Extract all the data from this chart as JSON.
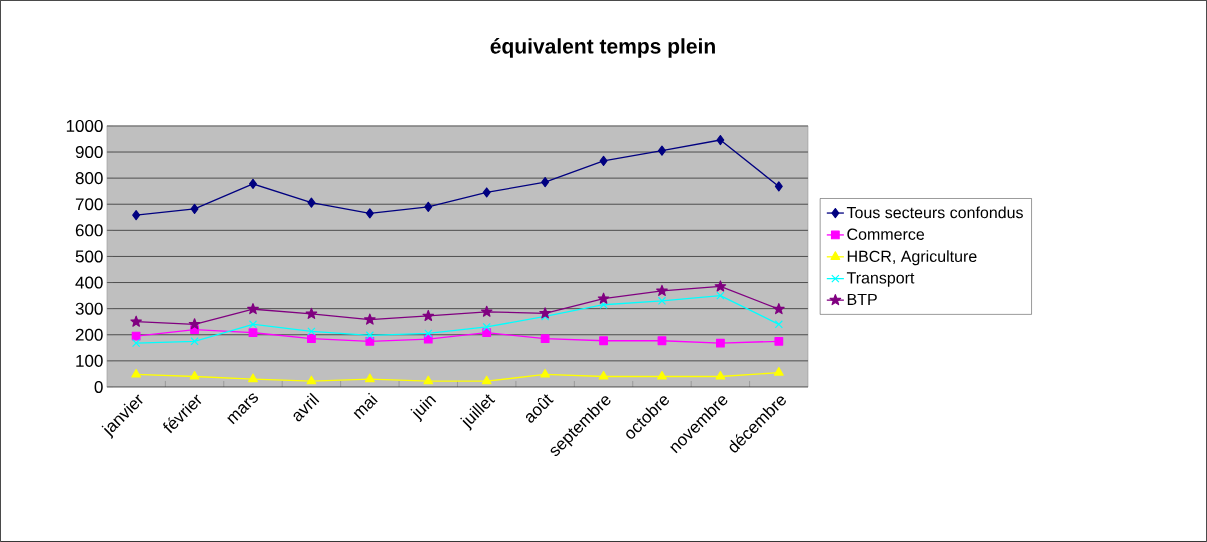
{
  "chart_data": {
    "type": "line",
    "title": "équivalent temps plein",
    "categories": [
      "janvier",
      "février",
      "mars",
      "avril",
      "mai",
      "juin",
      "juillet",
      "août",
      "septembre",
      "octobre",
      "novembre",
      "décembre"
    ],
    "series": [
      {
        "name": "Tous secteurs confondus",
        "color": "#000080",
        "marker": "diamond",
        "values": [
          658,
          682,
          778,
          706,
          665,
          690,
          745,
          785,
          866,
          905,
          946,
          768
        ]
      },
      {
        "name": "Commerce",
        "color": "#ff00ff",
        "marker": "square",
        "values": [
          195,
          220,
          208,
          185,
          175,
          183,
          208,
          185,
          177,
          177,
          168,
          175
        ]
      },
      {
        "name": "HBCR, Agriculture",
        "color": "#ffff00",
        "marker": "triangle",
        "values": [
          48,
          40,
          30,
          22,
          30,
          22,
          22,
          48,
          40,
          40,
          40,
          55
        ]
      },
      {
        "name": "Transport",
        "color": "#00ffff",
        "marker": "cross",
        "values": [
          168,
          175,
          240,
          213,
          198,
          205,
          230,
          270,
          315,
          330,
          350,
          240
        ]
      },
      {
        "name": "BTP",
        "color": "#800080",
        "marker": "star",
        "values": [
          250,
          240,
          298,
          280,
          258,
          272,
          288,
          282,
          338,
          368,
          385,
          298
        ]
      }
    ],
    "ylim": [
      0,
      1000
    ],
    "yticks": [
      0,
      100,
      200,
      300,
      400,
      500,
      600,
      700,
      800,
      900,
      1000
    ],
    "grid": "y",
    "legend": "right",
    "line_style": "solid"
  }
}
